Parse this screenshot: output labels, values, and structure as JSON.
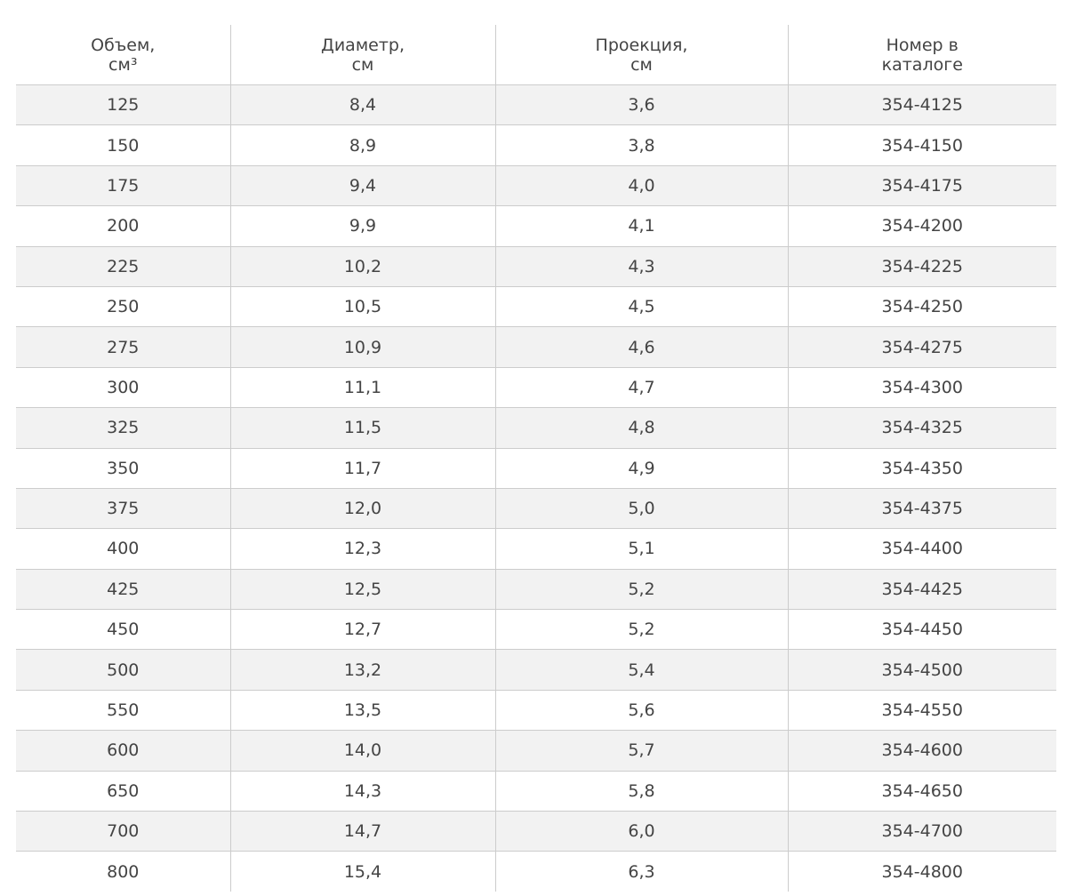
{
  "table": {
    "headers": [
      [
        "Объем,",
        "см³"
      ],
      [
        "Диаметр,",
        "см"
      ],
      [
        "Проекция,",
        "см"
      ],
      [
        "Номер в",
        "каталоге"
      ]
    ],
    "rows": [
      [
        "125",
        "8,4",
        "3,6",
        "354-4125"
      ],
      [
        "150",
        "8,9",
        "3,8",
        "354-4150"
      ],
      [
        "175",
        "9,4",
        "4,0",
        "354-4175"
      ],
      [
        "200",
        "9,9",
        "4,1",
        "354-4200"
      ],
      [
        "225",
        "10,2",
        "4,3",
        "354-4225"
      ],
      [
        "250",
        "10,5",
        "4,5",
        "354-4250"
      ],
      [
        "275",
        "10,9",
        "4,6",
        "354-4275"
      ],
      [
        "300",
        "11,1",
        "4,7",
        "354-4300"
      ],
      [
        "325",
        "11,5",
        "4,8",
        "354-4325"
      ],
      [
        "350",
        "11,7",
        "4,9",
        "354-4350"
      ],
      [
        "375",
        "12,0",
        "5,0",
        "354-4375"
      ],
      [
        "400",
        "12,3",
        "5,1",
        "354-4400"
      ],
      [
        "425",
        "12,5",
        "5,2",
        "354-4425"
      ],
      [
        "450",
        "12,7",
        "5,2",
        "354-4450"
      ],
      [
        "500",
        "13,2",
        "5,4",
        "354-4500"
      ],
      [
        "550",
        "13,5",
        "5,6",
        "354-4550"
      ],
      [
        "600",
        "14,0",
        "5,7",
        "354-4600"
      ],
      [
        "650",
        "14,3",
        "5,8",
        "354-4650"
      ],
      [
        "700",
        "14,7",
        "6,0",
        "354-4700"
      ],
      [
        "800",
        "15,4",
        "6,3",
        "354-4800"
      ]
    ]
  }
}
